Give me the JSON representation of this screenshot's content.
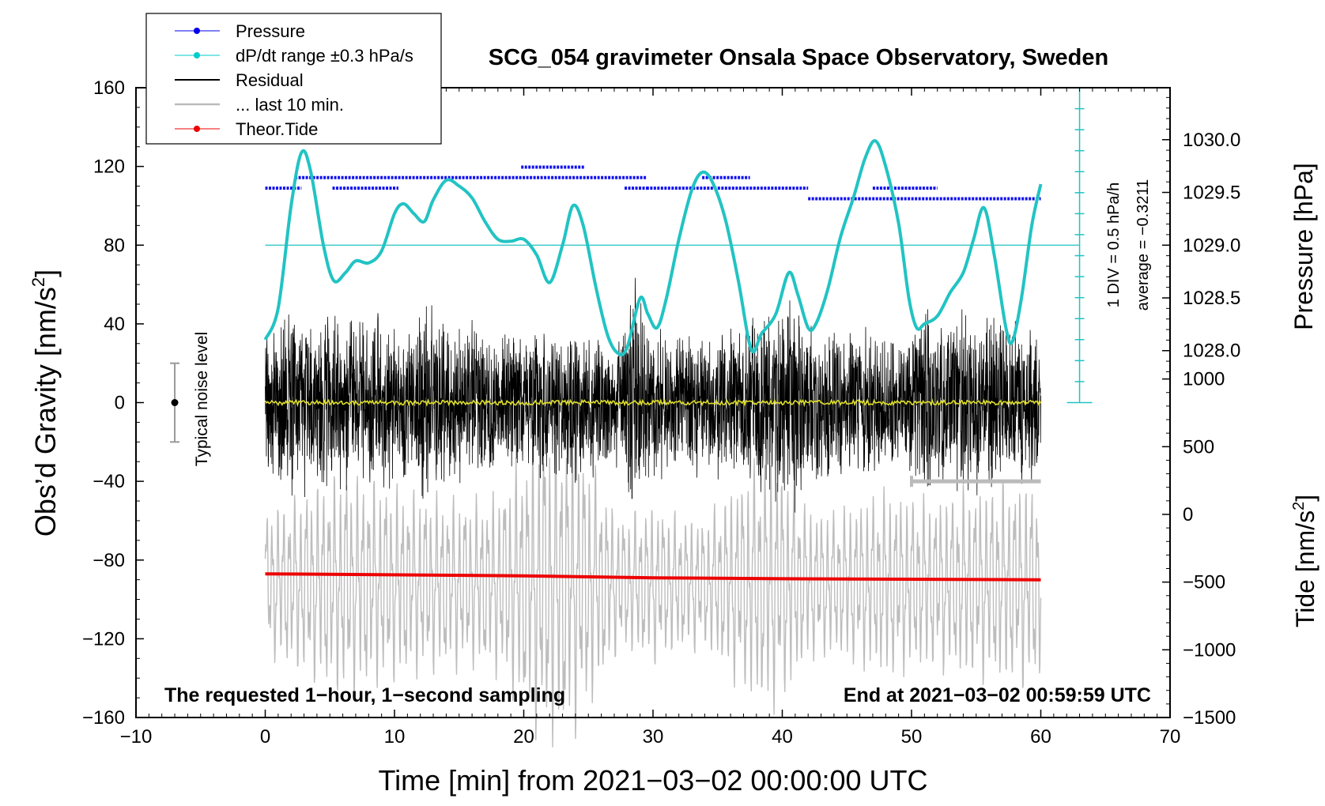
{
  "chart_data": {
    "type": "line",
    "title": "SCG_054 gravimeter Onsala Space Observatory, Sweden",
    "xlabel": "Time [min] from 2021−03−02 00:00:00 UTC",
    "ylabel_left": "Obs’d Gravity [nm/s",
    "ylabel_left_sup": "2",
    "ylabel_left_end": "]",
    "ylabel_pressure": "Pressure [hPa]",
    "ylabel_tide": "Tide [nm/s",
    "ylabel_tide_sup": "2",
    "ylabel_tide_end": "]",
    "xlim": [
      -10,
      70
    ],
    "ylim_left": [
      -160,
      160
    ],
    "x_ticks": [
      {
        "v": -10,
        "label": "−10"
      },
      {
        "v": 0,
        "label": "0"
      },
      {
        "v": 10,
        "label": "10"
      },
      {
        "v": 20,
        "label": "20"
      },
      {
        "v": 30,
        "label": "30"
      },
      {
        "v": 40,
        "label": "40"
      },
      {
        "v": 50,
        "label": "50"
      },
      {
        "v": 60,
        "label": "60"
      },
      {
        "v": 70,
        "label": "70"
      }
    ],
    "y_left_ticks": [
      {
        "v": 160,
        "label": "160"
      },
      {
        "v": 120,
        "label": "120"
      },
      {
        "v": 80,
        "label": "80"
      },
      {
        "v": 40,
        "label": "40"
      },
      {
        "v": 0,
        "label": "0"
      },
      {
        "v": -40,
        "label": "−40"
      },
      {
        "v": -80,
        "label": "−80"
      },
      {
        "v": -120,
        "label": "−120"
      },
      {
        "v": -160,
        "label": "−160"
      }
    ],
    "pressure_axis": {
      "ticks": [
        {
          "v": 1030.0,
          "label": "1030.0"
        },
        {
          "v": 1029.5,
          "label": "1029.5"
        },
        {
          "v": 1029.0,
          "label": "1029.0"
        },
        {
          "v": 1028.5,
          "label": "1028.5"
        },
        {
          "v": 1028.0,
          "label": "1028.0"
        }
      ],
      "gravity_equiv": {
        "p1": 1029.0,
        "g1": 80,
        "p2": 1028.0,
        "g2": 26.4
      }
    },
    "tide_axis": {
      "ticks": [
        {
          "v": 1000,
          "label": "1000"
        },
        {
          "v": 500,
          "label": "500"
        },
        {
          "v": 0,
          "label": "0"
        },
        {
          "v": -500,
          "label": "−500"
        },
        {
          "v": -1000,
          "label": "−1000"
        },
        {
          "v": -1500,
          "label": "−1500"
        }
      ],
      "gravity_equiv": {
        "t1": 1000,
        "g1": 12,
        "t2": -1500,
        "g2": -160
      }
    },
    "pressure_reference_line": 1029.0,
    "dpdt_scale": {
      "label": "1 DIV = 0.5 hPa/h",
      "average": "average = −0.3211",
      "top_gravity": 160,
      "bottom_gravity": 0,
      "divisions": 15
    },
    "noise_indicator": {
      "label": "Typical noise level",
      "x": -7,
      "center": 0,
      "half_range": 20
    },
    "last10_bar": {
      "x_start": 50,
      "x_end": 60,
      "y": -40
    },
    "footer_left": "The requested 1−hour, 1−second sampling",
    "footer_right": "End at 2021−03−02 00:59:59 UTC",
    "legend": [
      {
        "label": "Pressure",
        "style": "line-dot",
        "color": "#0000ee"
      },
      {
        "label": "dP/dt range ±0.3 hPa/s",
        "style": "line-dot",
        "color": "#00cccc"
      },
      {
        "label": "Residual",
        "style": "line",
        "color": "#000000"
      },
      {
        "label": "... last 10 min.",
        "style": "line",
        "color": "#bbbbbb"
      },
      {
        "label": "Theor.Tide",
        "style": "line-dot",
        "color": "#ee0000"
      }
    ],
    "series": [
      {
        "name": "dP/dt (cyan)",
        "color": "#22c3c3",
        "points": [
          [
            0,
            32
          ],
          [
            1,
            48
          ],
          [
            2,
            100
          ],
          [
            2.8,
            127
          ],
          [
            3.5,
            118
          ],
          [
            4.5,
            80
          ],
          [
            5.3,
            62
          ],
          [
            6.2,
            66
          ],
          [
            7,
            72
          ],
          [
            8,
            71
          ],
          [
            9,
            77
          ],
          [
            10,
            96
          ],
          [
            10.7,
            101
          ],
          [
            11.5,
            96
          ],
          [
            12.3,
            92
          ],
          [
            13,
            103
          ],
          [
            14,
            113
          ],
          [
            15,
            110
          ],
          [
            16,
            104
          ],
          [
            17,
            92
          ],
          [
            18,
            83
          ],
          [
            19,
            82
          ],
          [
            20,
            83
          ],
          [
            21,
            75
          ],
          [
            22,
            61
          ],
          [
            23,
            80
          ],
          [
            23.8,
            100
          ],
          [
            24.6,
            90
          ],
          [
            25.6,
            58
          ],
          [
            26.5,
            34
          ],
          [
            27.3,
            25
          ],
          [
            28,
            28
          ],
          [
            29,
            53
          ],
          [
            29.6,
            45
          ],
          [
            30.3,
            38
          ],
          [
            31,
            52
          ],
          [
            32,
            83
          ],
          [
            33,
            108
          ],
          [
            33.8,
            117
          ],
          [
            34.6,
            112
          ],
          [
            35.6,
            93
          ],
          [
            36.6,
            62
          ],
          [
            37.6,
            27
          ],
          [
            38.4,
            35
          ],
          [
            39.5,
            45
          ],
          [
            40.5,
            66
          ],
          [
            41.2,
            55
          ],
          [
            42,
            38
          ],
          [
            42.6,
            40
          ],
          [
            43.5,
            57
          ],
          [
            44.5,
            84
          ],
          [
            45.5,
            104
          ],
          [
            46.4,
            124
          ],
          [
            47.2,
            133
          ],
          [
            48,
            120
          ],
          [
            49,
            91
          ],
          [
            49.8,
            53
          ],
          [
            50.4,
            38
          ],
          [
            51,
            40
          ],
          [
            52,
            44
          ],
          [
            53,
            56
          ],
          [
            54,
            66
          ],
          [
            54.8,
            83
          ],
          [
            55.6,
            99
          ],
          [
            56.4,
            75
          ],
          [
            57.3,
            38
          ],
          [
            57.8,
            31
          ],
          [
            58.5,
            53
          ],
          [
            59.3,
            90
          ],
          [
            60,
            111
          ]
        ]
      },
      {
        "name": "Pressure",
        "color": "#1010ee",
        "segments": [
          [
            0,
            2.8,
            1029.54
          ],
          [
            2.3,
            29.5,
            1029.64
          ],
          [
            29.5,
            42,
            1029.54
          ],
          [
            42,
            60,
            1029.44
          ],
          [
            5.2,
            10.3,
            1029.54
          ],
          [
            19.8,
            24.7,
            1029.74
          ],
          [
            33.8,
            37.5,
            1029.64
          ],
          [
            47,
            52,
            1029.54
          ],
          [
            27.8,
            29.6,
            1029.54
          ]
        ]
      },
      {
        "name": "Residual envelope (black)",
        "color": "#000000",
        "env_points": [
          [
            0,
            45
          ],
          [
            1,
            42
          ],
          [
            2,
            54
          ],
          [
            3,
            49
          ],
          [
            4,
            47
          ],
          [
            5,
            55
          ],
          [
            6,
            52
          ],
          [
            7,
            46
          ],
          [
            8,
            44
          ],
          [
            9,
            50
          ],
          [
            10,
            48
          ],
          [
            11,
            43
          ],
          [
            12,
            52
          ],
          [
            13,
            50
          ],
          [
            14,
            47
          ],
          [
            15,
            44
          ],
          [
            16,
            45
          ],
          [
            17,
            40
          ],
          [
            18,
            38
          ],
          [
            19,
            43
          ],
          [
            20,
            36
          ],
          [
            21,
            42
          ],
          [
            22,
            41
          ],
          [
            23,
            38
          ],
          [
            24,
            45
          ],
          [
            25,
            41
          ],
          [
            26,
            37
          ],
          [
            27,
            33
          ],
          [
            28,
            55
          ],
          [
            28.7,
            76
          ],
          [
            29.5,
            50
          ],
          [
            30,
            46
          ],
          [
            31,
            40
          ],
          [
            32,
            38
          ],
          [
            33,
            44
          ],
          [
            34,
            36
          ],
          [
            35,
            42
          ],
          [
            36,
            44
          ],
          [
            37,
            46
          ],
          [
            38,
            52
          ],
          [
            39,
            50
          ],
          [
            40,
            55
          ],
          [
            41,
            58
          ],
          [
            42,
            46
          ],
          [
            43,
            43
          ],
          [
            44,
            45
          ],
          [
            45,
            41
          ],
          [
            46,
            39
          ],
          [
            47,
            44
          ],
          [
            48,
            38
          ],
          [
            49,
            33
          ],
          [
            50,
            40
          ],
          [
            51,
            60
          ],
          [
            52,
            50
          ],
          [
            53,
            54
          ],
          [
            54,
            52
          ],
          [
            55,
            50
          ],
          [
            56,
            48
          ],
          [
            57,
            44
          ],
          [
            58,
            47
          ],
          [
            59,
            44
          ],
          [
            60,
            44
          ]
        ]
      },
      {
        "name": "Last 10 min (gray)",
        "color": "#bdbdbd",
        "env_points": [
          [
            0,
            40
          ],
          [
            2,
            47
          ],
          [
            4,
            55
          ],
          [
            6,
            62
          ],
          [
            8,
            58
          ],
          [
            10,
            54
          ],
          [
            12,
            50
          ],
          [
            14,
            48
          ],
          [
            16,
            46
          ],
          [
            18,
            50
          ],
          [
            19.5,
            66
          ],
          [
            21,
            82
          ],
          [
            22.5,
            90
          ],
          [
            24,
            82
          ],
          [
            25.5,
            64
          ],
          [
            27,
            40
          ],
          [
            28,
            38
          ],
          [
            30,
            44
          ],
          [
            32,
            38
          ],
          [
            34,
            36
          ],
          [
            36,
            52
          ],
          [
            37.5,
            64
          ],
          [
            39,
            72
          ],
          [
            40.5,
            60
          ],
          [
            42,
            42
          ],
          [
            44,
            40
          ],
          [
            46,
            46
          ],
          [
            48,
            52
          ],
          [
            50,
            48
          ],
          [
            52,
            47
          ],
          [
            54,
            52
          ],
          [
            56,
            54
          ],
          [
            58,
            56
          ],
          [
            60,
            57
          ]
        ]
      },
      {
        "name": "Theor.Tide (red)",
        "color": "#ee0000",
        "points": [
          [
            0,
            -87
          ],
          [
            20,
            -88
          ],
          [
            30,
            -89
          ],
          [
            40,
            -89.5
          ],
          [
            60,
            -90
          ]
        ]
      },
      {
        "name": "Residual mean (yellow)",
        "color": "#dede2a",
        "points": [
          [
            0,
            0
          ],
          [
            60,
            0
          ]
        ]
      }
    ]
  }
}
